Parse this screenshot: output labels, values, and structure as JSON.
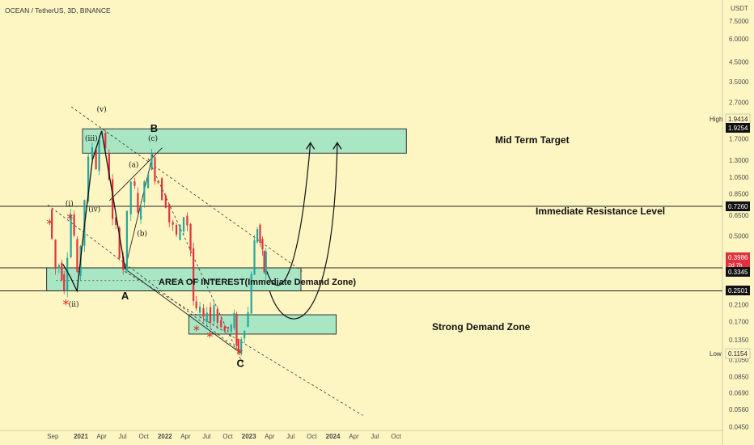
{
  "header": {
    "title": "OCEAN / TetherUS, 3D, BINANCE"
  },
  "colors": {
    "background": "#fdf6c3",
    "bull": "#26a69a",
    "bear": "#e0323c",
    "zone": "#a8e6c4",
    "zone_border": "#333333",
    "target_text": "#e01f1f",
    "interest_text": "#2a2ad4"
  },
  "chart_data": {
    "type": "candlestick",
    "scale": "log",
    "currency": "USDT",
    "y_ticks": [
      "7.5000",
      "6.0000",
      "4.5000",
      "3.5000",
      "2.7000",
      "1.7000",
      "1.3000",
      "1.0500",
      "0.8500",
      "0.6500",
      "0.5000",
      "0.2100",
      "0.1700",
      "0.1350",
      "0.1050",
      "0.0850",
      "0.0690",
      "0.0560",
      "0.0450"
    ],
    "x_ticks": [
      "Sep",
      "2021",
      "Apr",
      "Jul",
      "Oct",
      "2022",
      "Apr",
      "Jul",
      "Oct",
      "2023",
      "Apr",
      "Jul",
      "Oct",
      "2024",
      "Apr",
      "Jul",
      "Oct"
    ],
    "price_badges": [
      {
        "label": "High",
        "value": "1.9414"
      },
      {
        "label": "",
        "value": "1.9254"
      },
      {
        "label": "",
        "value": "0.7260"
      },
      {
        "label": "",
        "value": "0.3986",
        "extra": "2d 7h"
      },
      {
        "label": "",
        "value": "0.3345"
      },
      {
        "label": "",
        "value": "0.2501"
      },
      {
        "label": "Low",
        "value": "0.1154"
      }
    ],
    "price_path": [
      {
        "date": "2020-08-20",
        "price": 0.7
      },
      {
        "date": "2020-09-05",
        "price": 0.48
      },
      {
        "date": "2020-09-20",
        "price": 0.33
      },
      {
        "date": "2020-10-05",
        "price": 0.35
      },
      {
        "date": "2020-10-25",
        "price": 0.26
      },
      {
        "date": "2020-11-12",
        "price": 0.4
      },
      {
        "date": "2020-11-25",
        "price": 0.66
      },
      {
        "date": "2020-12-10",
        "price": 0.5
      },
      {
        "date": "2020-12-22",
        "price": 0.3
      },
      {
        "date": "2021-01-08",
        "price": 0.45
      },
      {
        "date": "2021-01-25",
        "price": 0.8
      },
      {
        "date": "2021-02-10",
        "price": 1.3
      },
      {
        "date": "2021-02-28",
        "price": 1.55
      },
      {
        "date": "2021-03-15",
        "price": 1.2
      },
      {
        "date": "2021-03-28",
        "price": 1.7
      },
      {
        "date": "2021-04-10",
        "price": 1.85
      },
      {
        "date": "2021-04-25",
        "price": 1.45
      },
      {
        "date": "2021-05-12",
        "price": 1.05
      },
      {
        "date": "2021-05-25",
        "price": 0.6
      },
      {
        "date": "2021-06-10",
        "price": 0.55
      },
      {
        "date": "2021-06-25",
        "price": 0.4
      },
      {
        "date": "2021-07-12",
        "price": 0.33
      },
      {
        "date": "2021-07-28",
        "price": 0.65
      },
      {
        "date": "2021-08-15",
        "price": 1.0
      },
      {
        "date": "2021-08-30",
        "price": 0.9
      },
      {
        "date": "2021-09-12",
        "price": 0.65
      },
      {
        "date": "2021-09-25",
        "price": 0.75
      },
      {
        "date": "2021-10-12",
        "price": 0.95
      },
      {
        "date": "2021-10-28",
        "price": 1.15
      },
      {
        "date": "2021-11-12",
        "price": 1.35
      },
      {
        "date": "2021-11-25",
        "price": 1.05
      },
      {
        "date": "2021-12-10",
        "price": 1.0
      },
      {
        "date": "2021-12-28",
        "price": 0.82
      },
      {
        "date": "2022-01-12",
        "price": 0.75
      },
      {
        "date": "2022-01-28",
        "price": 0.6
      },
      {
        "date": "2022-02-12",
        "price": 0.56
      },
      {
        "date": "2022-02-28",
        "price": 0.5
      },
      {
        "date": "2022-03-15",
        "price": 0.55
      },
      {
        "date": "2022-04-01",
        "price": 0.65
      },
      {
        "date": "2022-04-15",
        "price": 0.58
      },
      {
        "date": "2022-04-30",
        "price": 0.42
      },
      {
        "date": "2022-05-10",
        "price": 0.22
      },
      {
        "date": "2022-05-25",
        "price": 0.19
      },
      {
        "date": "2022-06-10",
        "price": 0.2
      },
      {
        "date": "2022-06-25",
        "price": 0.17
      },
      {
        "date": "2022-07-10",
        "price": 0.2
      },
      {
        "date": "2022-07-25",
        "price": 0.17
      },
      {
        "date": "2022-08-10",
        "price": 0.21
      },
      {
        "date": "2022-08-25",
        "price": 0.17
      },
      {
        "date": "2022-09-10",
        "price": 0.165
      },
      {
        "date": "2022-09-25",
        "price": 0.15
      },
      {
        "date": "2022-10-10",
        "price": 0.155
      },
      {
        "date": "2022-10-22",
        "price": 0.16
      },
      {
        "date": "2022-11-05",
        "price": 0.18
      },
      {
        "date": "2022-11-12",
        "price": 0.13
      },
      {
        "date": "2022-11-22",
        "price": 0.115
      },
      {
        "date": "2022-12-05",
        "price": 0.14
      },
      {
        "date": "2022-12-20",
        "price": 0.16
      },
      {
        "date": "2023-01-05",
        "price": 0.19
      },
      {
        "date": "2023-01-18",
        "price": 0.32
      },
      {
        "date": "2023-02-01",
        "price": 0.46
      },
      {
        "date": "2023-02-12",
        "price": 0.56
      },
      {
        "date": "2023-02-25",
        "price": 0.46
      },
      {
        "date": "2023-03-05",
        "price": 0.4
      },
      {
        "date": "2023-03-12",
        "price": 0.32
      },
      {
        "date": "2023-03-20",
        "price": 0.4
      }
    ],
    "zones": [
      {
        "name": "Mid Term Target",
        "from_date": "2021-01-08",
        "to_date": "2024-11-15",
        "low": 1.42,
        "high": 1.93
      },
      {
        "name": "AREA OF INTEREST(Immediate Demand Zone)",
        "from_date": "2020-08-05",
        "to_date": "2023-08-15",
        "low": 0.2501,
        "high": 0.3345
      },
      {
        "name": "Strong Demand Zone",
        "from_date": "2022-04-15",
        "to_date": "2024-01-15",
        "low": 0.145,
        "high": 0.185
      }
    ],
    "levels": [
      {
        "name": "Immediate Resistance Level",
        "price": 0.726
      },
      {
        "name": "",
        "price": 0.3345
      },
      {
        "name": "",
        "price": 0.2501
      }
    ],
    "wave_labels": [
      {
        "text": "(v)",
        "date": "2021-04-01",
        "price": 2.4
      },
      {
        "text": "(iii)",
        "date": "2021-02-15",
        "price": 1.66
      },
      {
        "text": "(iv)",
        "date": "2021-03-01",
        "price": 0.68
      },
      {
        "text": "(i)",
        "date": "2020-11-12",
        "price": 0.73
      },
      {
        "text": "(ii)",
        "date": "2020-12-01",
        "price": 0.205
      },
      {
        "text": "(a)",
        "date": "2021-08-18",
        "price": 1.19
      },
      {
        "text": "(b)",
        "date": "2021-09-24",
        "price": 0.5
      },
      {
        "text": "(c)",
        "date": "2021-11-10",
        "price": 1.66
      },
      {
        "text": "B",
        "date": "2021-11-15",
        "price": 1.86
      },
      {
        "text": "A",
        "date": "2021-07-12",
        "price": 0.225
      },
      {
        "text": "C",
        "date": "2022-11-25",
        "price": 0.096
      }
    ],
    "annotations": [
      {
        "text": "Mid Term Target",
        "color": "#e01f1f"
      },
      {
        "text": "Immediate Resistance Level",
        "color": "#111111"
      },
      {
        "text": "AREA OF INTEREST(Immediate Demand Zone)",
        "color": "#2a2ad4"
      },
      {
        "text": "Strong Demand Zone",
        "color": "#111111"
      }
    ]
  }
}
